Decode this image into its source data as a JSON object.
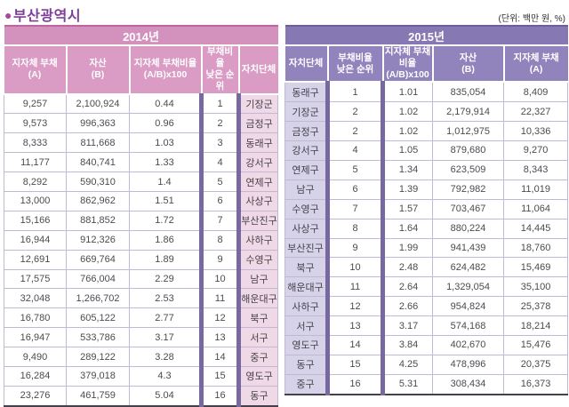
{
  "title": {
    "bullet": "●",
    "text": "부산광역시"
  },
  "unit_label": "(단위: 백만 원, %)",
  "colors": {
    "title_text": "#7e3f99",
    "title_bullet": "#a8489c",
    "pink_banner": "#d392be",
    "pink_header": "#da9bc5",
    "pink_district_cell": "#f0d9e7",
    "purple_banner": "#8678b2",
    "purple_header": "#9184bc",
    "purple_district_cell": "#d6d2e8",
    "rank_bar": "#77689f",
    "grid_line": "#c3b8d4",
    "bottom_border": "#46404e"
  },
  "tables": [
    {
      "year": "2014년",
      "theme": "pink",
      "rank_col": 3,
      "district_col": 4,
      "columns": [
        [
          "지자체 부채",
          "(A)"
        ],
        [
          "자산",
          "(B)"
        ],
        [
          "지자체 부채비율",
          "(A/B)x100"
        ],
        [
          "부채비율",
          "낮은 순위"
        ],
        [
          "자치단체"
        ]
      ],
      "rows": [
        [
          "9,257",
          "2,100,924",
          "0.44",
          "1",
          "기장군"
        ],
        [
          "9,573",
          "996,363",
          "0.96",
          "2",
          "금정구"
        ],
        [
          "8,333",
          "811,668",
          "1.03",
          "3",
          "동래구"
        ],
        [
          "11,177",
          "840,741",
          "1.33",
          "4",
          "강서구"
        ],
        [
          "8,292",
          "590,310",
          "1.4",
          "5",
          "연제구"
        ],
        [
          "13,000",
          "862,962",
          "1.51",
          "6",
          "사상구"
        ],
        [
          "15,166",
          "881,852",
          "1.72",
          "7",
          "부산진구"
        ],
        [
          "16,944",
          "912,326",
          "1.86",
          "8",
          "사하구"
        ],
        [
          "12,691",
          "669,764",
          "1.89",
          "9",
          "수영구"
        ],
        [
          "17,575",
          "766,004",
          "2.29",
          "10",
          "남구"
        ],
        [
          "32,048",
          "1,266,702",
          "2.53",
          "11",
          "해운대구"
        ],
        [
          "16,780",
          "605,122",
          "2.77",
          "12",
          "북구"
        ],
        [
          "16,947",
          "533,786",
          "3.17",
          "13",
          "서구"
        ],
        [
          "9,490",
          "289,122",
          "3.28",
          "14",
          "중구"
        ],
        [
          "16,284",
          "379,018",
          "4.3",
          "15",
          "영도구"
        ],
        [
          "23,276",
          "461,759",
          "5.04",
          "16",
          "동구"
        ]
      ]
    },
    {
      "year": "2015년",
      "theme": "purple",
      "rank_col": 1,
      "district_col": 0,
      "columns": [
        [
          "자치단체"
        ],
        [
          "부채비율",
          "낮은 순위"
        ],
        [
          "지자체 부채비율",
          "(A/B)x100"
        ],
        [
          "자산",
          "(B)"
        ],
        [
          "지자체 부채",
          "(A)"
        ]
      ],
      "rows": [
        [
          "동래구",
          "1",
          "1.01",
          "835,054",
          "8,409"
        ],
        [
          "기장군",
          "2",
          "1.02",
          "2,179,914",
          "22,327"
        ],
        [
          "금정구",
          "2",
          "1.02",
          "1,012,975",
          "10,336"
        ],
        [
          "강서구",
          "4",
          "1.05",
          "879,680",
          "9,270"
        ],
        [
          "연제구",
          "5",
          "1.34",
          "623,509",
          "8,343"
        ],
        [
          "남구",
          "6",
          "1.39",
          "792,982",
          "11,019"
        ],
        [
          "수영구",
          "7",
          "1.57",
          "703,467",
          "11,064"
        ],
        [
          "사상구",
          "8",
          "1.64",
          "880,224",
          "14,445"
        ],
        [
          "부산진구",
          "9",
          "1.99",
          "941,439",
          "18,760"
        ],
        [
          "북구",
          "10",
          "2.48",
          "624,482",
          "15,469"
        ],
        [
          "해운대구",
          "11",
          "2.64",
          "1,329,054",
          "35,100"
        ],
        [
          "사하구",
          "12",
          "2.66",
          "954,824",
          "25,378"
        ],
        [
          "서구",
          "13",
          "3.17",
          "574,168",
          "18,214"
        ],
        [
          "영도구",
          "14",
          "3.84",
          "402,670",
          "15,476"
        ],
        [
          "동구",
          "15",
          "4.25",
          "478,996",
          "20,375"
        ],
        [
          "중구",
          "16",
          "5.31",
          "308,434",
          "16,373"
        ]
      ]
    }
  ]
}
